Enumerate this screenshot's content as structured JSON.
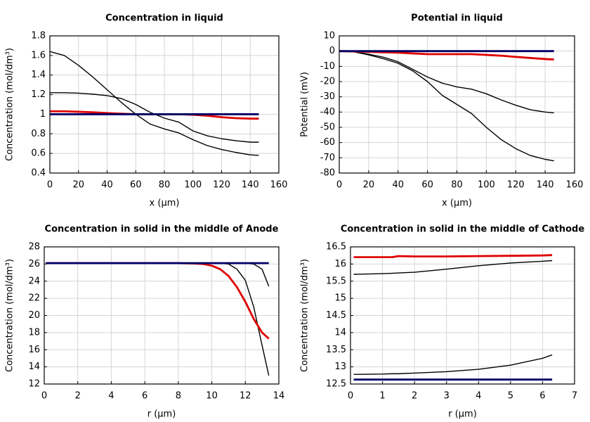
{
  "chart_data": [
    {
      "type": "line",
      "title": "Concentration in liquid",
      "xlabel": "x (µm)",
      "ylabel": "Concentration (mol/dm³)",
      "x": [
        0,
        10,
        20,
        30,
        40,
        50,
        60,
        70,
        80,
        90,
        100,
        110,
        120,
        130,
        140,
        146
      ],
      "series": [
        {
          "color": "#000000",
          "values": [
            1.64,
            1.6,
            1.5,
            1.38,
            1.25,
            1.12,
            1.0,
            0.9,
            0.85,
            0.81,
            0.74,
            0.68,
            0.64,
            0.61,
            0.585,
            0.58
          ]
        },
        {
          "color": "#000000",
          "values": [
            1.22,
            1.22,
            1.215,
            1.205,
            1.19,
            1.16,
            1.1,
            1.02,
            0.96,
            0.92,
            0.83,
            0.78,
            0.75,
            0.73,
            0.715,
            0.715
          ]
        },
        {
          "color": "#e00000",
          "values": [
            1.03,
            1.03,
            1.025,
            1.02,
            1.012,
            1.006,
            1.0,
            1.0,
            1.0,
            1.0,
            0.995,
            0.985,
            0.97,
            0.96,
            0.955,
            0.955
          ]
        },
        {
          "color": "#000066",
          "values": [
            1,
            1,
            1,
            1,
            1,
            1,
            1,
            1,
            1,
            1,
            1,
            1,
            1,
            1,
            1,
            1
          ]
        }
      ],
      "xlim": [
        0,
        160
      ],
      "xticks": [
        0,
        20,
        40,
        60,
        80,
        100,
        120,
        140,
        160
      ],
      "ylim": [
        0.4,
        1.8
      ],
      "yticks": [
        0.4,
        0.6,
        0.8,
        1,
        1.2,
        1.4,
        1.6,
        1.8
      ],
      "grid": true
    },
    {
      "type": "line",
      "title": "Potential in liquid",
      "xlabel": "x (µm)",
      "ylabel": "Potential (mV)",
      "x": [
        0,
        10,
        20,
        30,
        40,
        50,
        60,
        70,
        80,
        90,
        100,
        110,
        120,
        130,
        140,
        146
      ],
      "series": [
        {
          "color": "#000000",
          "values": [
            0,
            -0.5,
            -2.5,
            -5,
            -8,
            -13,
            -20,
            -29,
            -35,
            -41,
            -50,
            -58,
            -64,
            -68.5,
            -71,
            -72
          ]
        },
        {
          "color": "#000000",
          "values": [
            0,
            -0.5,
            -2,
            -4,
            -7,
            -12,
            -17,
            -21,
            -23.5,
            -25,
            -28,
            -32,
            -35.5,
            -38.5,
            -40,
            -40.5
          ]
        },
        {
          "color": "#e00000",
          "values": [
            0,
            -0.2,
            -0.5,
            -0.8,
            -1,
            -1.5,
            -2,
            -2,
            -2,
            -2,
            -2.5,
            -3,
            -3.8,
            -4.5,
            -5.2,
            -5.5
          ]
        },
        {
          "color": "#000066",
          "values": [
            0,
            0,
            0,
            0,
            0,
            0,
            0,
            0,
            0,
            0,
            0,
            0,
            0,
            0,
            0,
            0
          ]
        }
      ],
      "xlim": [
        0,
        160
      ],
      "xticks": [
        0,
        20,
        40,
        60,
        80,
        100,
        120,
        140,
        160
      ],
      "ylim": [
        -80,
        10
      ],
      "yticks": [
        -80,
        -70,
        -60,
        -50,
        -40,
        -30,
        -20,
        -10,
        0,
        10
      ],
      "grid": true
    },
    {
      "type": "line",
      "title": "Concentration in solid in the middle of Anode",
      "xlabel": "r (µm)",
      "ylabel": "Concentration (mol/dm³)",
      "x": [
        0.1,
        2,
        4,
        6,
        8,
        9,
        9.5,
        10,
        10.5,
        11,
        11.5,
        12,
        12.5,
        13,
        13.4
      ],
      "series": [
        {
          "color": "#000000",
          "values": [
            26.1,
            26.1,
            26.1,
            26.1,
            26.1,
            26.1,
            26.1,
            26.1,
            26.1,
            26.0,
            25.4,
            24.1,
            21.0,
            16.5,
            13.0
          ]
        },
        {
          "color": "#000000",
          "values": [
            26.1,
            26.1,
            26.1,
            26.1,
            26.1,
            26.1,
            26.1,
            26.1,
            26.1,
            26.1,
            26.1,
            26.1,
            26.0,
            25.4,
            23.4
          ]
        },
        {
          "color": "#e00000",
          "values": [
            26.1,
            26.1,
            26.1,
            26.1,
            26.1,
            26.05,
            26.0,
            25.8,
            25.4,
            24.6,
            23.3,
            21.6,
            19.6,
            18.0,
            17.3
          ]
        },
        {
          "color": "#000066",
          "values": [
            26.1,
            26.1,
            26.1,
            26.1,
            26.1,
            26.1,
            26.1,
            26.1,
            26.1,
            26.1,
            26.1,
            26.1,
            26.1,
            26.1,
            26.1
          ]
        }
      ],
      "xlim": [
        0,
        14
      ],
      "xticks": [
        0,
        2,
        4,
        6,
        8,
        10,
        12,
        14
      ],
      "ylim": [
        12,
        28
      ],
      "yticks": [
        12,
        14,
        16,
        18,
        20,
        22,
        24,
        26,
        28
      ],
      "grid": true
    },
    {
      "type": "line",
      "title": "Concentration in solid in the middle of Cathode",
      "xlabel": "r (µm)",
      "ylabel": "Concentration (mol/dm³)",
      "x": [
        0.1,
        1,
        1.3,
        1.5,
        2,
        3,
        4,
        5,
        6,
        6.3
      ],
      "series": [
        {
          "color": "#000000",
          "values": [
            15.7,
            15.72,
            15.73,
            15.74,
            15.76,
            15.85,
            15.95,
            16.03,
            16.08,
            16.1
          ]
        },
        {
          "color": "#000000",
          "values": [
            12.78,
            12.79,
            12.8,
            12.8,
            12.82,
            12.86,
            12.93,
            13.05,
            13.25,
            13.35
          ]
        },
        {
          "color": "#e00000",
          "values": [
            16.2,
            16.2,
            16.2,
            16.23,
            16.22,
            16.22,
            16.23,
            16.24,
            16.25,
            16.26
          ]
        },
        {
          "color": "#000066",
          "values": [
            12.63,
            12.63,
            12.63,
            12.63,
            12.63,
            12.63,
            12.63,
            12.63,
            12.63,
            12.63
          ]
        }
      ],
      "xlim": [
        0,
        7
      ],
      "xticks": [
        0,
        1,
        2,
        3,
        4,
        5,
        6,
        7
      ],
      "ylim": [
        12.5,
        16.5
      ],
      "yticks": [
        12.5,
        13,
        13.5,
        14,
        14.5,
        15,
        15.5,
        16,
        16.5
      ],
      "grid": true
    }
  ]
}
